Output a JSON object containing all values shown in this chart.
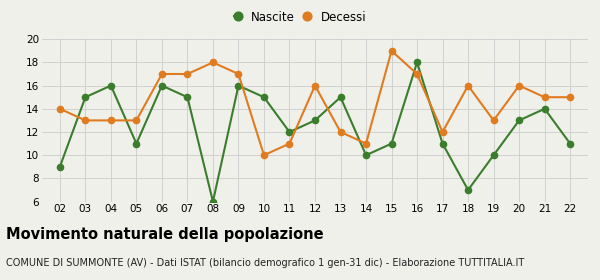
{
  "years": [
    2,
    3,
    4,
    5,
    6,
    7,
    8,
    9,
    10,
    11,
    12,
    13,
    14,
    15,
    16,
    17,
    18,
    19,
    20,
    21,
    22
  ],
  "nascite": [
    9,
    15,
    16,
    11,
    16,
    15,
    6,
    16,
    15,
    12,
    13,
    15,
    10,
    11,
    18,
    11,
    7,
    10,
    13,
    14,
    11
  ],
  "decessi": [
    14,
    13,
    13,
    13,
    17,
    17,
    18,
    17,
    10,
    11,
    16,
    12,
    11,
    19,
    17,
    12,
    16,
    13,
    16,
    15,
    15
  ],
  "nascite_color": "#3a7d2c",
  "decessi_color": "#e07b20",
  "background_color": "#f0f0eb",
  "grid_color": "#cccccc",
  "ylim": [
    6,
    20
  ],
  "yticks": [
    6,
    8,
    10,
    12,
    14,
    16,
    18,
    20
  ],
  "title": "Movimento naturale della popolazione",
  "subtitle": "COMUNE DI SUMMONTE (AV) - Dati ISTAT (bilancio demografico 1 gen-31 dic) - Elaborazione TUTTITALIA.IT",
  "legend_nascite": "Nascite",
  "legend_decessi": "Decessi",
  "marker_size": 4.5,
  "line_width": 1.5,
  "title_fontsize": 10.5,
  "subtitle_fontsize": 7.0,
  "tick_fontsize": 7.5,
  "legend_fontsize": 8.5
}
